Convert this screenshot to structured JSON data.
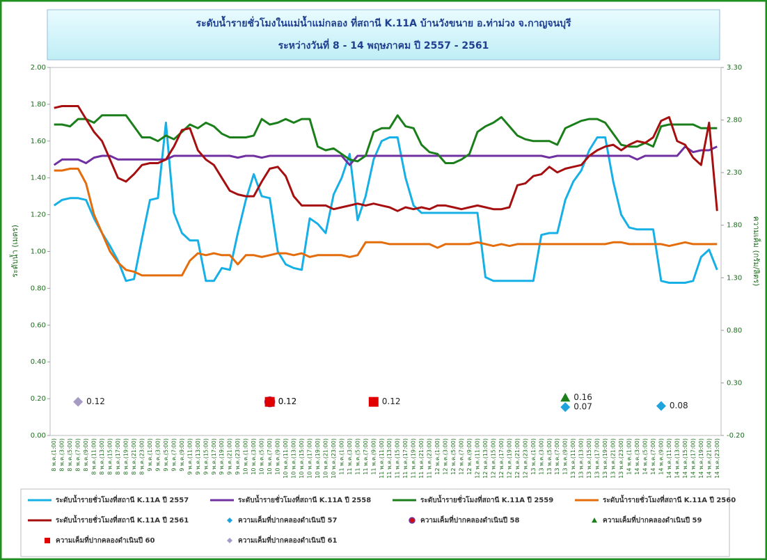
{
  "chart_data": {
    "type": "line",
    "title": "ระดับน้ำรายชั่วโมงในแม่น้ำแม่กลอง ที่สถานี K.11A บ้านวังขนาย อ.ท่าม่วง จ.กาญจนบุรี",
    "subtitle": "ระหว่างวันที่ 8 - 14 พฤษภาคม  ปี 2557 - 2561",
    "y_label": "ระดับน้ำ (เมตร)",
    "y2_label": "ความเค็ม (กรัม/ลิตร)",
    "categories": [
      "8 พ.ค.(1:00)",
      "8 พ.ค.(3:00)",
      "8 พ.ค.(5:00)",
      "8 พ.ค.(7:00)",
      "8 พ.ค.(9:00)",
      "8 พ.ค.(11:00)",
      "8 พ.ค.(13:00)",
      "8 พ.ค.(15:00)",
      "8 พ.ค.(17:00)",
      "8 พ.ค.(19:00)",
      "8 พ.ค.(21:00)",
      "8 พ.ค.(23:00)",
      "9 พ.ค.(1:00)",
      "9 พ.ค.(3:00)",
      "9 พ.ค.(5:00)",
      "9 พ.ค.(7:00)",
      "9 พ.ค.(9:00)",
      "9 พ.ค.(11:00)",
      "9 พ.ค.(13:00)",
      "9 พ.ค.(15:00)",
      "9 พ.ค.(17:00)",
      "9 พ.ค.(19:00)",
      "9 พ.ค.(21:00)",
      "9 พ.ค.(23:00)",
      "10 พ.ค.(1:00)",
      "10 พ.ค.(3:00)",
      "10 พ.ค.(5:00)",
      "10 พ.ค.(7:00)",
      "10 พ.ค.(9:00)",
      "10 พ.ค.(11:00)",
      "10 พ.ค.(13:00)",
      "10 พ.ค.(15:00)",
      "10 พ.ค.(17:00)",
      "10 พ.ค.(19:00)",
      "10 พ.ค.(21:00)",
      "10 พ.ค.(23:00)",
      "11 พ.ค.(1:00)",
      "11 พ.ค.(3:00)",
      "11 พ.ค.(5:00)",
      "11 พ.ค.(7:00)",
      "11 พ.ค.(9:00)",
      "11 พ.ค.(11:00)",
      "11 พ.ค.(13:00)",
      "11 พ.ค.(15:00)",
      "11 พ.ค.(17:00)",
      "11 พ.ค.(19:00)",
      "11 พ.ค.(21:00)",
      "11 พ.ค.(23:00)",
      "12 พ.ค.(1:00)",
      "12 พ.ค.(3:00)",
      "12 พ.ค.(5:00)",
      "12 พ.ค.(7:00)",
      "12 พ.ค.(9:00)",
      "12 พ.ค.(11:00)",
      "12 พ.ค.(13:00)",
      "12 พ.ค.(15:00)",
      "12 พ.ค.(17:00)",
      "12 พ.ค.(19:00)",
      "12 พ.ค.(21:00)",
      "12 พ.ค.(23:00)",
      "13 พ.ค.(1:00)",
      "13 พ.ค.(3:00)",
      "13 พ.ค.(5:00)",
      "13 พ.ค.(7:00)",
      "13 พ.ค.(9:00)",
      "13 พ.ค.(11:00)",
      "13 พ.ค.(13:00)",
      "13 พ.ค.(15:00)",
      "13 พ.ค.(17:00)",
      "13 พ.ค.(19:00)",
      "13 พ.ค.(21:00)",
      "13 พ.ค.(23:00)",
      "14 พ.ค.(1:00)",
      "14 พ.ค.(3:00)",
      "14 พ.ค.(5:00)",
      "14 พ.ค.(7:00)",
      "14 พ.ค.(9:00)",
      "14 พ.ค.(11:00)",
      "14 พ.ค.(13:00)",
      "14 พ.ค.(15:00)",
      "14 พ.ค.(17:00)",
      "14 พ.ค.(19:00)",
      "14 พ.ค.(21:00)",
      "14 พ.ค.(23:00)"
    ],
    "ylim": [
      0,
      2
    ],
    "yticks": [
      {
        "value": 0,
        "label": "0.00"
      },
      {
        "value": 0.2,
        "label": "0.20"
      },
      {
        "value": 0.4,
        "label": "0.40"
      },
      {
        "value": 0.6,
        "label": "0.60"
      },
      {
        "value": 0.8,
        "label": "0.80"
      },
      {
        "value": 1,
        "label": "1.00"
      },
      {
        "value": 1.2,
        "label": "1.20"
      },
      {
        "value": 1.4,
        "label": "1.40"
      },
      {
        "value": 1.6,
        "label": "1.60"
      },
      {
        "value": 1.8,
        "label": "1.80"
      },
      {
        "value": 2,
        "label": "2.00"
      }
    ],
    "y2lim": [
      -0.2,
      3.3
    ],
    "y2ticks": [
      {
        "value": -0.2,
        "label": "-0.20"
      },
      {
        "value": 0.3,
        "label": "0.30"
      },
      {
        "value": 0.8,
        "label": "0.80"
      },
      {
        "value": 1.3,
        "label": "1.30"
      },
      {
        "value": 1.8,
        "label": "1.80"
      },
      {
        "value": 2.3,
        "label": "2.30"
      },
      {
        "value": 2.8,
        "label": "2.80"
      },
      {
        "value": 3.3,
        "label": "3.30"
      }
    ],
    "series": [
      {
        "name": "ระดับน้ำรายชั่วโมงที่สถานี K.11A ปี 2557",
        "color": "#17b0e6",
        "values": [
          1.25,
          1.28,
          1.29,
          1.29,
          1.28,
          1.18,
          1.1,
          1.03,
          0.95,
          0.84,
          0.85,
          1.07,
          1.28,
          1.29,
          1.7,
          1.21,
          1.1,
          1.06,
          1.06,
          0.84,
          0.84,
          0.91,
          0.9,
          1.1,
          1.28,
          1.42,
          1.3,
          1.29,
          1.0,
          0.93,
          0.91,
          0.9,
          1.18,
          1.15,
          1.1,
          1.31,
          1.4,
          1.53,
          1.17,
          1.3,
          1.5,
          1.6,
          1.62,
          1.62,
          1.4,
          1.25,
          1.21,
          1.21,
          1.21,
          1.21,
          1.21,
          1.21,
          1.21,
          1.21,
          0.86,
          0.84,
          0.84,
          0.84,
          0.84,
          0.84,
          0.84,
          1.09,
          1.1,
          1.1,
          1.28,
          1.38,
          1.44,
          1.55,
          1.62,
          1.62,
          1.38,
          1.2,
          1.13,
          1.12,
          1.12,
          1.12,
          0.84,
          0.83,
          0.83,
          0.83,
          0.84,
          0.97,
          1.01,
          0.9
        ]
      },
      {
        "name": "ระดับน้ำรายชั่วโมงที่สถานี K.11A ปี 2558",
        "color": "#7030a0",
        "values": [
          1.47,
          1.5,
          1.5,
          1.5,
          1.48,
          1.51,
          1.52,
          1.52,
          1.5,
          1.5,
          1.5,
          1.5,
          1.5,
          1.5,
          1.5,
          1.52,
          1.52,
          1.52,
          1.52,
          1.52,
          1.52,
          1.52,
          1.52,
          1.51,
          1.52,
          1.52,
          1.51,
          1.52,
          1.52,
          1.52,
          1.52,
          1.52,
          1.52,
          1.52,
          1.52,
          1.52,
          1.52,
          1.47,
          1.52,
          1.52,
          1.52,
          1.52,
          1.52,
          1.52,
          1.52,
          1.52,
          1.52,
          1.52,
          1.52,
          1.52,
          1.52,
          1.52,
          1.52,
          1.52,
          1.52,
          1.52,
          1.52,
          1.52,
          1.52,
          1.52,
          1.52,
          1.52,
          1.51,
          1.52,
          1.52,
          1.52,
          1.52,
          1.52,
          1.52,
          1.52,
          1.52,
          1.52,
          1.52,
          1.5,
          1.52,
          1.52,
          1.52,
          1.52,
          1.52,
          1.57,
          1.54,
          1.55,
          1.55,
          1.57
        ]
      },
      {
        "name": "ระดับน้ำรายชั่วโมงที่สถานี K.11A ปี 2559",
        "color": "#1a7f1a",
        "values": [
          1.69,
          1.69,
          1.68,
          1.72,
          1.72,
          1.7,
          1.74,
          1.74,
          1.74,
          1.74,
          1.68,
          1.62,
          1.62,
          1.6,
          1.63,
          1.61,
          1.65,
          1.69,
          1.67,
          1.7,
          1.68,
          1.64,
          1.62,
          1.62,
          1.62,
          1.63,
          1.72,
          1.69,
          1.7,
          1.72,
          1.7,
          1.72,
          1.72,
          1.57,
          1.55,
          1.56,
          1.53,
          1.5,
          1.49,
          1.52,
          1.65,
          1.67,
          1.67,
          1.74,
          1.68,
          1.67,
          1.58,
          1.54,
          1.53,
          1.48,
          1.48,
          1.5,
          1.53,
          1.65,
          1.68,
          1.7,
          1.73,
          1.68,
          1.63,
          1.61,
          1.6,
          1.6,
          1.6,
          1.58,
          1.67,
          1.69,
          1.71,
          1.72,
          1.72,
          1.7,
          1.64,
          1.58,
          1.57,
          1.57,
          1.59,
          1.57,
          1.68,
          1.69,
          1.69,
          1.69,
          1.69,
          1.67,
          1.67,
          1.67
        ]
      },
      {
        "name": "ระดับน้ำรายชั่วโมงที่สถานี K.11A ปี 2560",
        "color": "#e46c0a",
        "values": [
          1.44,
          1.44,
          1.45,
          1.45,
          1.37,
          1.2,
          1.1,
          1.0,
          0.94,
          0.9,
          0.89,
          0.87,
          0.87,
          0.87,
          0.87,
          0.87,
          0.87,
          0.95,
          0.99,
          0.98,
          0.99,
          0.98,
          0.98,
          0.93,
          0.98,
          0.98,
          0.97,
          0.98,
          0.99,
          0.99,
          0.98,
          0.99,
          0.97,
          0.98,
          0.98,
          0.98,
          0.98,
          0.97,
          0.98,
          1.05,
          1.05,
          1.05,
          1.04,
          1.04,
          1.04,
          1.04,
          1.04,
          1.04,
          1.02,
          1.04,
          1.04,
          1.04,
          1.04,
          1.05,
          1.04,
          1.03,
          1.04,
          1.03,
          1.04,
          1.04,
          1.04,
          1.04,
          1.04,
          1.04,
          1.04,
          1.04,
          1.04,
          1.04,
          1.04,
          1.04,
          1.05,
          1.05,
          1.04,
          1.04,
          1.04,
          1.04,
          1.04,
          1.03,
          1.04,
          1.05,
          1.04,
          1.04,
          1.04,
          1.04
        ]
      },
      {
        "name": "ระดับน้ำรายชั่วโมงที่สถานี K.11A ปี 2561",
        "color": "#a50f0f",
        "values": [
          1.78,
          1.79,
          1.79,
          1.79,
          1.72,
          1.65,
          1.6,
          1.5,
          1.4,
          1.38,
          1.42,
          1.47,
          1.48,
          1.48,
          1.5,
          1.57,
          1.66,
          1.67,
          1.55,
          1.5,
          1.47,
          1.4,
          1.33,
          1.31,
          1.3,
          1.3,
          1.38,
          1.45,
          1.46,
          1.41,
          1.3,
          1.25,
          1.25,
          1.25,
          1.25,
          1.23,
          1.24,
          1.25,
          1.26,
          1.25,
          1.26,
          1.25,
          1.24,
          1.22,
          1.24,
          1.23,
          1.24,
          1.23,
          1.25,
          1.25,
          1.24,
          1.23,
          1.24,
          1.25,
          1.24,
          1.23,
          1.23,
          1.24,
          1.36,
          1.37,
          1.41,
          1.42,
          1.46,
          1.43,
          1.45,
          1.46,
          1.47,
          1.52,
          1.55,
          1.57,
          1.58,
          1.55,
          1.58,
          1.6,
          1.59,
          1.62,
          1.71,
          1.73,
          1.6,
          1.58,
          1.51,
          1.47,
          1.7,
          1.22
        ]
      },
      {
        "name": "ความเค็มที่ปากคลองดำเนินปี 57",
        "color": "#1fa3dc",
        "marker": "diamond",
        "axis": "y2",
        "values": [
          null,
          null,
          null,
          null,
          null,
          null,
          null,
          null,
          null,
          null,
          null,
          null,
          null,
          null,
          null,
          null,
          null,
          null,
          null,
          null,
          null,
          null,
          null,
          null,
          null,
          null,
          null,
          null,
          null,
          null,
          null,
          null,
          null,
          null,
          null,
          null,
          null,
          null,
          null,
          null,
          null,
          null,
          null,
          null,
          null,
          null,
          null,
          null,
          null,
          null,
          null,
          null,
          null,
          null,
          null,
          null,
          null,
          null,
          null,
          null,
          null,
          null,
          null,
          null,
          0.07,
          null,
          null,
          null,
          null,
          null,
          null,
          null,
          null,
          null,
          null,
          null,
          0.08,
          null,
          null,
          null,
          null,
          null,
          null,
          null
        ]
      },
      {
        "name": "ความเค็มที่ปากคลองดำเนินปี 58",
        "color": "#7030a0",
        "marker": "circle",
        "axis": "y2",
        "values": [
          null,
          null,
          null,
          null,
          null,
          null,
          null,
          null,
          null,
          null,
          null,
          null,
          null,
          null,
          null,
          null,
          null,
          null,
          null,
          null,
          null,
          null,
          null,
          null,
          null,
          null,
          null,
          0.12,
          null,
          null,
          null,
          null,
          null,
          null,
          null,
          null,
          null,
          null,
          null,
          null,
          null,
          null,
          null,
          null,
          null,
          null,
          null,
          null,
          null,
          null,
          null,
          null,
          null,
          null,
          null,
          null,
          null,
          null,
          null,
          null,
          null,
          null,
          null,
          null,
          null,
          null,
          null,
          null,
          null,
          null,
          null,
          null,
          null,
          null,
          null,
          null,
          null,
          null,
          null,
          null,
          null,
          null,
          null,
          null
        ]
      },
      {
        "name": "ความเค็มที่ปากคลองดำเนินปี 59",
        "color": "#1a7f1a",
        "marker": "triangle",
        "axis": "y2",
        "values": [
          null,
          null,
          null,
          null,
          null,
          null,
          null,
          null,
          null,
          null,
          null,
          null,
          null,
          null,
          null,
          null,
          null,
          null,
          null,
          null,
          null,
          null,
          null,
          null,
          null,
          null,
          null,
          null,
          null,
          null,
          null,
          null,
          null,
          null,
          null,
          null,
          null,
          null,
          null,
          null,
          null,
          null,
          null,
          null,
          null,
          null,
          null,
          null,
          null,
          null,
          null,
          null,
          null,
          null,
          null,
          null,
          null,
          null,
          null,
          null,
          null,
          null,
          null,
          null,
          0.16,
          null,
          null,
          null,
          null,
          null,
          null,
          null,
          null,
          null,
          null,
          null,
          null,
          null,
          null,
          null,
          null,
          null,
          null,
          null
        ]
      },
      {
        "name": "ความเค็มที่ปากคลองดำเนินปี 60",
        "color": "#e00000",
        "marker": "square",
        "axis": "y2",
        "values": [
          null,
          null,
          null,
          null,
          null,
          null,
          null,
          null,
          null,
          null,
          null,
          null,
          null,
          null,
          null,
          null,
          null,
          null,
          null,
          null,
          null,
          null,
          null,
          null,
          null,
          null,
          null,
          0.12,
          null,
          null,
          null,
          null,
          null,
          null,
          null,
          null,
          null,
          null,
          null,
          null,
          0.12,
          null,
          null,
          null,
          null,
          null,
          null,
          null,
          null,
          null,
          null,
          null,
          null,
          null,
          null,
          null,
          null,
          null,
          null,
          null,
          null,
          null,
          null,
          null,
          null,
          null,
          null,
          null,
          null,
          null,
          null,
          null,
          null,
          null,
          null,
          null,
          null,
          null,
          null,
          null,
          null,
          null,
          null,
          null
        ]
      },
      {
        "name": "ความเค็มที่ปากคลองดำเนินปี 61",
        "color": "#a69bc4",
        "marker": "diamond",
        "axis": "y2",
        "values": [
          null,
          null,
          null,
          0.12,
          null,
          null,
          null,
          null,
          null,
          null,
          null,
          null,
          null,
          null,
          null,
          null,
          null,
          null,
          null,
          null,
          null,
          null,
          null,
          null,
          null,
          null,
          null,
          null,
          null,
          null,
          null,
          null,
          null,
          null,
          null,
          null,
          null,
          null,
          null,
          null,
          null,
          null,
          null,
          null,
          null,
          null,
          null,
          null,
          null,
          null,
          null,
          null,
          null,
          null,
          null,
          null,
          null,
          null,
          null,
          null,
          null,
          null,
          null,
          null,
          null,
          null,
          null,
          null,
          null,
          null,
          null,
          null,
          null,
          null,
          null,
          null,
          null,
          null,
          null,
          null,
          null,
          null,
          null,
          null
        ]
      }
    ]
  }
}
